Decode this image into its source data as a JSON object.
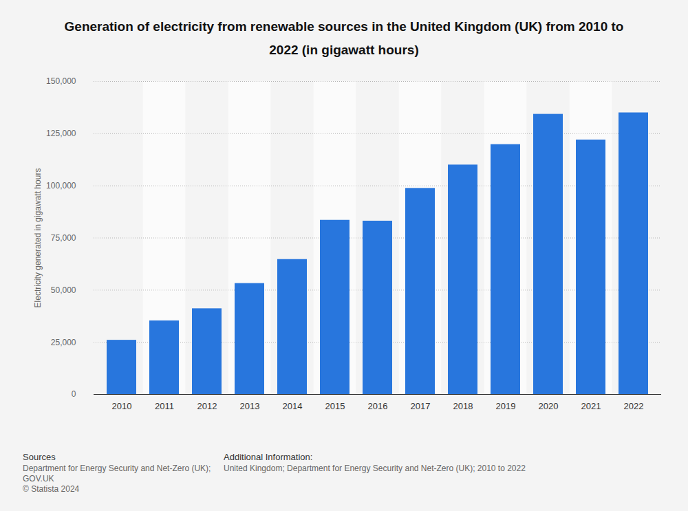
{
  "chart_data": {
    "type": "bar",
    "title": "Generation of electricity from renewable sources in the United Kingdom (UK) from 2010 to 2022 (in gigawatt hours)",
    "y_label": "Electricity generated in gigawatt hours",
    "categories": [
      "2010",
      "2011",
      "2012",
      "2013",
      "2014",
      "2015",
      "2016",
      "2017",
      "2018",
      "2019",
      "2020",
      "2021",
      "2022"
    ],
    "values": [
      26000,
      35300,
      41100,
      53200,
      64700,
      83500,
      83100,
      98800,
      110000,
      119800,
      134300,
      122000,
      135000
    ],
    "color": "#2876dd",
    "ylim": [
      0,
      150000
    ],
    "yticks": [
      0,
      {
        "value": 25000,
        "label": "25,000"
      },
      {
        "value": 50000,
        "label": "50,000"
      },
      {
        "value": 75000,
        "label": "75,000"
      },
      {
        "value": 100000,
        "label": "100,000"
      },
      {
        "value": 125000,
        "label": "125,000"
      },
      {
        "value": 150000,
        "label": "150,000"
      }
    ],
    "grid": true,
    "sources_heading": "Sources",
    "sources": [
      "Department for Energy Security and Net-Zero (UK);",
      "GOV.UK",
      "© Statista 2024"
    ],
    "additional_info_heading": "Additional Information:",
    "additional_info": "United Kingdom; Department for Energy Security and Net-Zero (UK); 2010 to 2022"
  }
}
